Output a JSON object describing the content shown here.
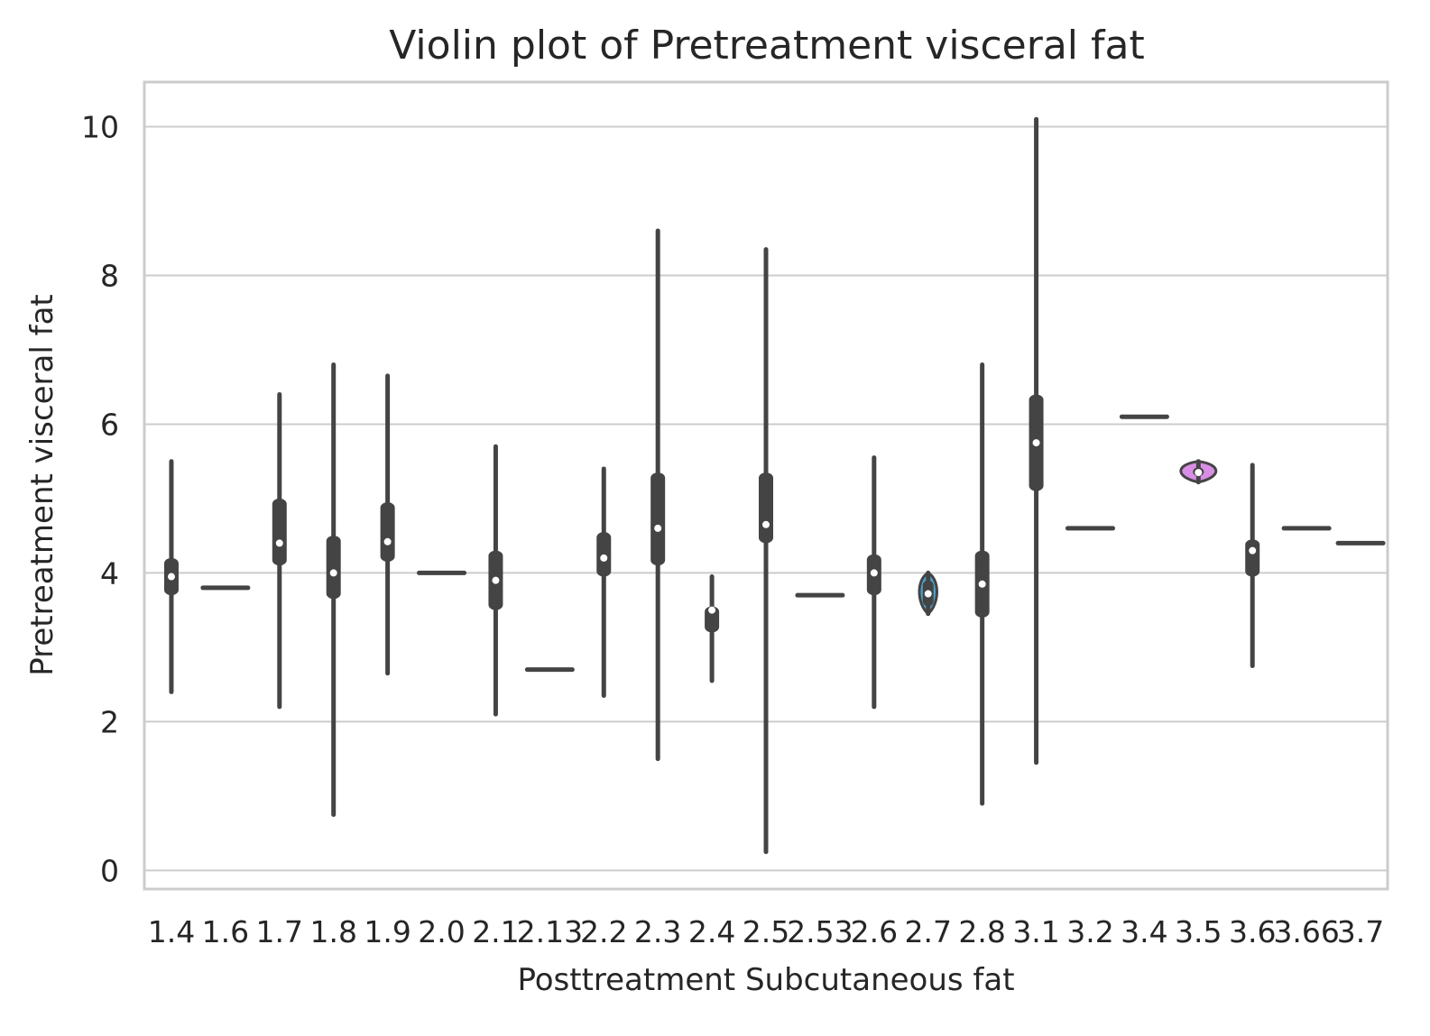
{
  "chart_data": {
    "type": "violin",
    "title": "Violin plot of Pretreatment visceral fat",
    "xlabel": "Posttreatment Subcutaneous fat",
    "ylabel": "Pretreatment visceral fat",
    "yticks": [
      0,
      2,
      4,
      6,
      8,
      10
    ],
    "ylim": [
      -0.25,
      10.6
    ],
    "grid": true,
    "categories": [
      "1.4",
      "1.6",
      "1.7",
      "1.8",
      "1.9",
      "2.0",
      "2.1",
      "2.13",
      "2.2",
      "2.3",
      "2.4",
      "2.5",
      "2.53",
      "2.6",
      "2.7",
      "2.8",
      "3.1",
      "3.2",
      "3.4",
      "3.5",
      "3.6",
      "3.66",
      "3.7"
    ],
    "series": [
      {
        "category": "1.4",
        "min": 2.4,
        "q1": 3.7,
        "median": 3.95,
        "q3": 4.2,
        "max": 5.5,
        "single": false
      },
      {
        "category": "1.6",
        "value": 3.8,
        "single": true
      },
      {
        "category": "1.7",
        "min": 2.2,
        "q1": 4.1,
        "median": 4.4,
        "q3": 5.0,
        "max": 6.4,
        "single": false
      },
      {
        "category": "1.8",
        "min": 0.75,
        "q1": 3.65,
        "median": 4.0,
        "q3": 4.5,
        "max": 6.8,
        "single": false
      },
      {
        "category": "1.9",
        "min": 2.65,
        "q1": 4.15,
        "median": 4.42,
        "q3": 4.95,
        "max": 6.65,
        "single": false
      },
      {
        "category": "2.0",
        "value": 4.0,
        "single": true
      },
      {
        "category": "2.1",
        "min": 2.1,
        "q1": 3.5,
        "median": 3.9,
        "q3": 4.3,
        "max": 5.7,
        "single": false
      },
      {
        "category": "2.13",
        "value": 2.7,
        "single": true
      },
      {
        "category": "2.2",
        "min": 2.35,
        "q1": 3.95,
        "median": 4.2,
        "q3": 4.55,
        "max": 5.4,
        "single": false
      },
      {
        "category": "2.3",
        "min": 1.5,
        "q1": 4.1,
        "median": 4.6,
        "q3": 5.35,
        "max": 8.6,
        "single": false
      },
      {
        "category": "2.4",
        "min": 2.55,
        "q1": 3.2,
        "median": 3.5,
        "q3": 3.55,
        "max": 3.95,
        "single": false
      },
      {
        "category": "2.5",
        "min": 0.25,
        "q1": 4.4,
        "median": 4.65,
        "q3": 5.35,
        "max": 8.35,
        "single": false
      },
      {
        "category": "2.53",
        "value": 3.7,
        "single": true
      },
      {
        "category": "2.6",
        "min": 2.2,
        "q1": 3.7,
        "median": 4.0,
        "q3": 4.25,
        "max": 5.55,
        "single": false
      },
      {
        "category": "2.7",
        "min": 3.45,
        "q1": 3.55,
        "median": 3.72,
        "q3": 3.9,
        "max": 4.0,
        "single": false
      },
      {
        "category": "2.8",
        "min": 0.9,
        "q1": 3.4,
        "median": 3.85,
        "q3": 4.3,
        "max": 6.8,
        "single": false
      },
      {
        "category": "3.1",
        "min": 1.45,
        "q1": 5.1,
        "median": 5.75,
        "q3": 6.4,
        "max": 10.1,
        "single": false
      },
      {
        "category": "3.2",
        "value": 4.6,
        "single": true
      },
      {
        "category": "3.4",
        "value": 6.1,
        "single": true
      },
      {
        "category": "3.5",
        "min": 5.22,
        "q1": 5.3,
        "median": 5.35,
        "q3": 5.42,
        "max": 5.5,
        "single": false
      },
      {
        "category": "3.6",
        "min": 2.75,
        "q1": 3.95,
        "median": 4.3,
        "q3": 4.45,
        "max": 5.45,
        "single": false
      },
      {
        "category": "3.66",
        "value": 4.6,
        "single": true
      },
      {
        "category": "3.7",
        "value": 4.4,
        "single": true
      }
    ],
    "colors": {
      "line": "#444444",
      "grid": "#cccccc",
      "median": "#ffffff",
      "accent_2.4": "#3a9b84",
      "accent_2.7": "#4aa3cf",
      "accent_3.5": "#d98ee6"
    }
  }
}
